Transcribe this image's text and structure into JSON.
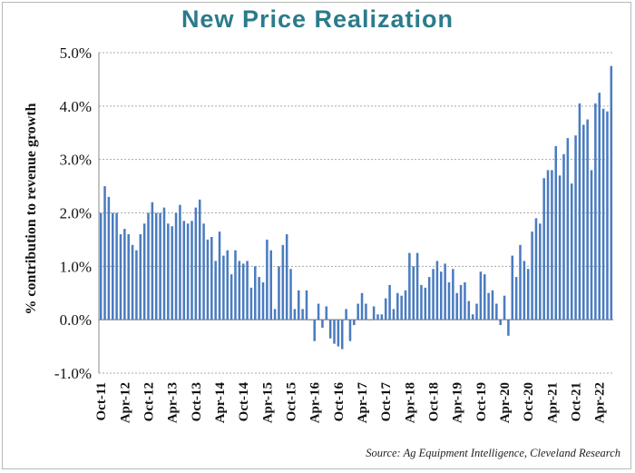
{
  "chart_data": {
    "type": "bar",
    "title": "New Price Realization",
    "xlabel": "",
    "ylabel": "% contribution to revenue growth",
    "source": "Source: Ag Equipment Intelligence, Cleveland Research",
    "ylim": [
      -1.0,
      5.0
    ],
    "yticks": [
      "-1.0%",
      "0.0%",
      "1.0%",
      "2.0%",
      "3.0%",
      "4.0%",
      "5.0%"
    ],
    "ytick_values": [
      -1,
      0,
      1,
      2,
      3,
      4,
      5
    ],
    "xtick_labels": [
      "Oct-11",
      "Apr-12",
      "Oct-12",
      "Apr-13",
      "Oct-13",
      "Apr-14",
      "Oct-14",
      "Apr-15",
      "Oct-15",
      "Apr-16",
      "Oct-16",
      "Apr-17",
      "Oct-17",
      "Apr-18",
      "Oct-18",
      "Apr-19",
      "Oct-19",
      "Apr-20",
      "Oct-20",
      "Apr-21",
      "Oct-21",
      "Apr-22"
    ],
    "start_month": "Oct-11",
    "bar_color": "#4a7cc0",
    "grid": "horizontal",
    "values": [
      2.0,
      2.5,
      2.3,
      2.0,
      2.0,
      1.6,
      1.7,
      1.6,
      1.4,
      1.3,
      1.6,
      1.8,
      2.0,
      2.2,
      2.0,
      2.0,
      2.1,
      1.8,
      1.75,
      2.0,
      2.15,
      1.85,
      1.8,
      1.85,
      2.1,
      2.25,
      1.8,
      1.5,
      1.55,
      1.1,
      1.65,
      1.2,
      1.3,
      0.85,
      1.3,
      1.1,
      1.05,
      1.1,
      0.6,
      1.0,
      0.8,
      0.7,
      1.5,
      1.3,
      0.2,
      1.0,
      1.4,
      1.6,
      0.95,
      0.2,
      0.55,
      0.2,
      0.55,
      0.0,
      -0.4,
      0.3,
      -0.15,
      0.25,
      -0.35,
      -0.45,
      -0.5,
      -0.55,
      0.2,
      -0.4,
      -0.1,
      0.3,
      0.5,
      0.3,
      0.0,
      0.25,
      0.1,
      0.1,
      0.4,
      0.65,
      0.2,
      0.5,
      0.45,
      0.55,
      1.25,
      1.0,
      1.25,
      0.65,
      0.6,
      0.8,
      0.95,
      1.1,
      0.9,
      1.05,
      0.7,
      0.95,
      0.5,
      0.65,
      0.7,
      0.35,
      0.1,
      0.3,
      0.9,
      0.85,
      0.5,
      0.55,
      0.3,
      -0.1,
      0.45,
      -0.3,
      1.2,
      0.8,
      1.4,
      1.1,
      0.95,
      1.65,
      1.9,
      1.8,
      2.65,
      2.8,
      2.8,
      3.25,
      2.7,
      3.1,
      3.4,
      2.55,
      3.45,
      4.05,
      3.65,
      3.75,
      2.8,
      4.05,
      4.25,
      3.95,
      3.9,
      4.75
    ]
  }
}
